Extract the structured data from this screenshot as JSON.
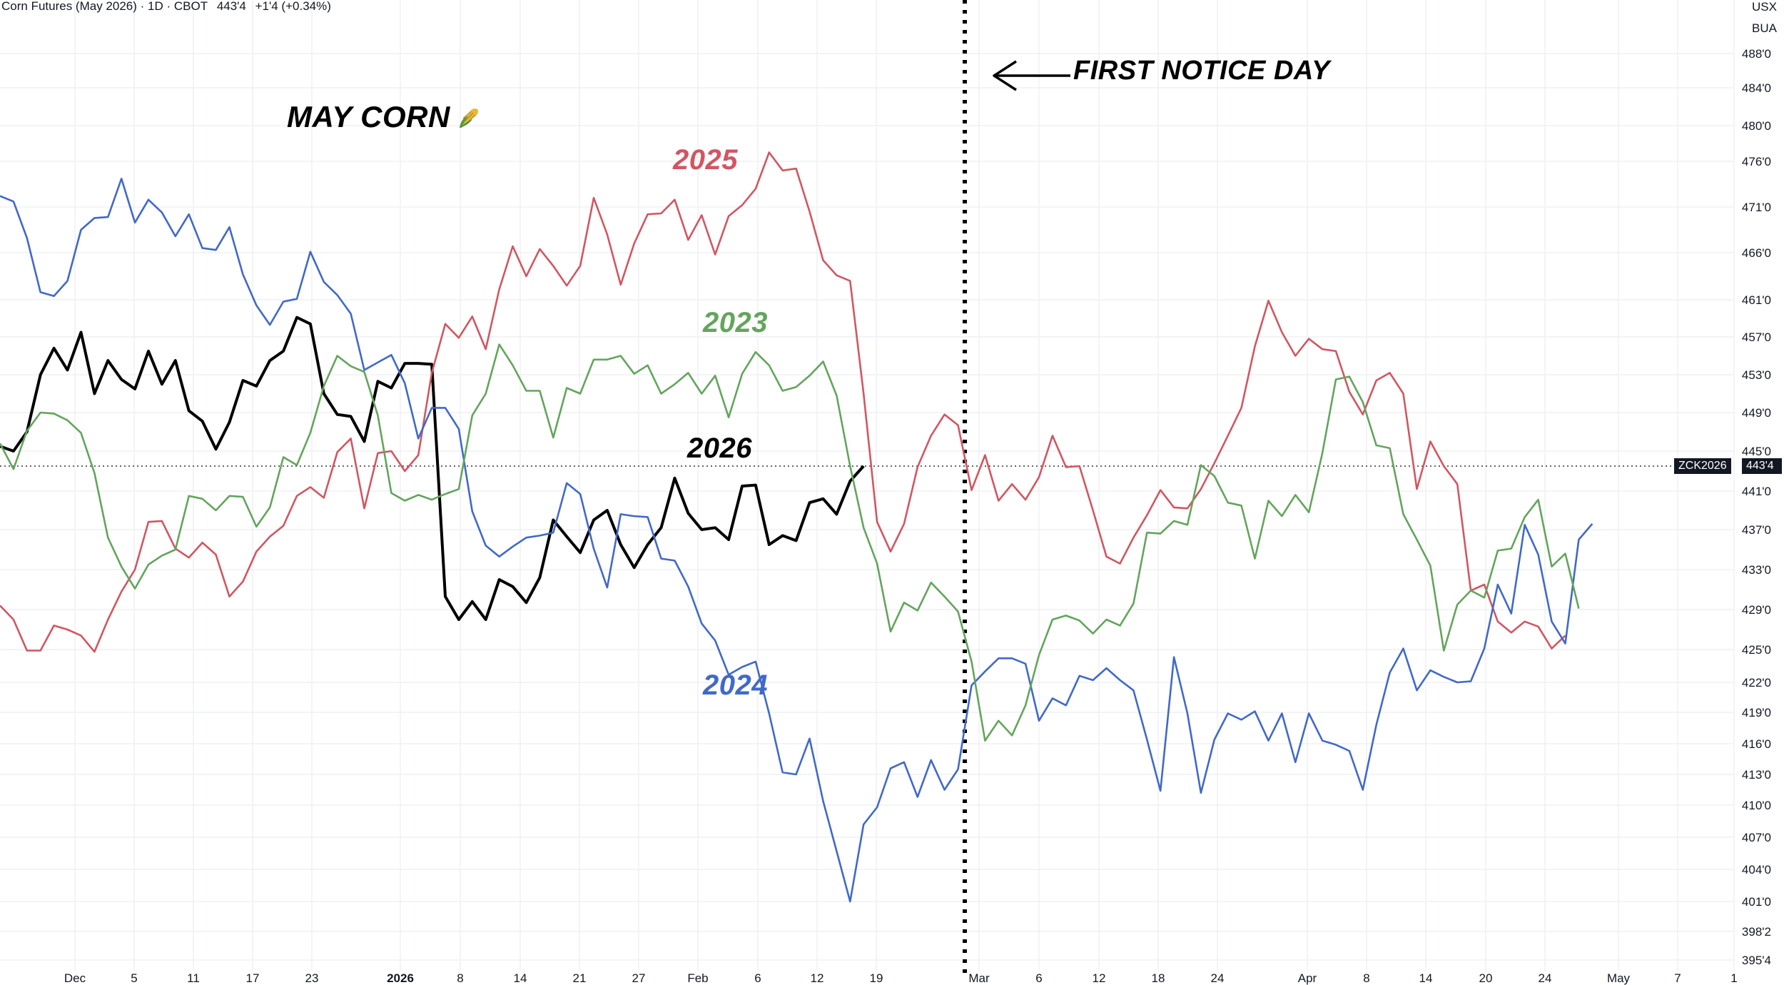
{
  "header": {
    "symbol_title": "Corn Futures (May 2026) · 1D · CBOT",
    "last_price": "443'4",
    "change": "+1'4 (+0.34%)"
  },
  "axis_units": {
    "currency": "USX",
    "unit": "BUA"
  },
  "current_price_tag": {
    "symbol": "ZCK2026",
    "price": "443'4"
  },
  "annotations": {
    "chart_title": "MAY CORN",
    "chart_title_icon": "corn-icon",
    "first_notice_day": "FIRST NOTICE DAY",
    "label_2025": "2025",
    "label_2023": "2023",
    "label_2026": "2026",
    "label_2024": "2024"
  },
  "colors": {
    "series_2026": "#000000",
    "series_2025": "#d05762",
    "series_2024": "#4169c8",
    "series_2023": "#63a55c",
    "grid": "#eef0f3",
    "text": "#131722"
  },
  "chart_data": {
    "type": "line",
    "title": "MAY CORN",
    "x_ticks": [
      {
        "label": "Dec",
        "bold": false
      },
      {
        "label": "5",
        "bold": false
      },
      {
        "label": "11",
        "bold": false
      },
      {
        "label": "17",
        "bold": false
      },
      {
        "label": "23",
        "bold": false
      },
      {
        "label": "2026",
        "bold": true
      },
      {
        "label": "8",
        "bold": false
      },
      {
        "label": "14",
        "bold": false
      },
      {
        "label": "21",
        "bold": false
      },
      {
        "label": "27",
        "bold": false
      },
      {
        "label": "Feb",
        "bold": false
      },
      {
        "label": "6",
        "bold": false
      },
      {
        "label": "12",
        "bold": false
      },
      {
        "label": "19",
        "bold": false
      },
      {
        "label": "Mar",
        "bold": false
      },
      {
        "label": "6",
        "bold": false
      },
      {
        "label": "12",
        "bold": false
      },
      {
        "label": "18",
        "bold": false
      },
      {
        "label": "24",
        "bold": false
      },
      {
        "label": "Apr",
        "bold": false
      },
      {
        "label": "8",
        "bold": false
      },
      {
        "label": "14",
        "bold": false
      },
      {
        "label": "20",
        "bold": false
      },
      {
        "label": "24",
        "bold": false
      },
      {
        "label": "May",
        "bold": false
      },
      {
        "label": "7",
        "bold": false
      },
      {
        "label": "1",
        "bold": false
      }
    ],
    "y_ticks": [
      "488'0",
      "484'0",
      "480'0",
      "476'0",
      "471'0",
      "466'0",
      "461'0",
      "457'0",
      "453'0",
      "449'0",
      "445'0",
      "441'0",
      "437'0",
      "433'0",
      "429'0",
      "425'0",
      "422'0",
      "419'0",
      "416'0",
      "413'0",
      "410'0",
      "407'0",
      "404'0",
      "401'0",
      "398'2",
      "395'4"
    ],
    "first_notice_day_index": 71.5,
    "current_price": 443.5,
    "series": [
      {
        "name": "2026",
        "values": [
          445.5,
          445,
          447,
          453,
          455.8,
          453.5,
          457.5,
          451,
          454.5,
          452.5,
          451.5,
          455.5,
          452,
          454.5,
          449.2,
          448.1,
          445.2,
          448,
          452.4,
          451.8,
          454.5,
          455.5,
          459.1,
          458.4,
          451,
          448.8,
          448.6,
          446,
          452.3,
          451.6,
          454.2,
          454.2,
          454.1,
          430.3,
          428,
          429.8,
          428,
          432,
          431.3,
          429.7,
          432.2,
          438,
          436.3,
          434.7,
          438,
          439,
          435.5,
          433.2,
          435.5,
          437.2,
          442.3,
          438.7,
          437,
          437.2,
          436,
          441.5,
          441.6,
          435.5,
          436.4,
          435.9,
          439.8,
          440.2,
          438.6,
          442,
          443.5
        ]
      },
      {
        "name": "2025",
        "values": [
          429.4,
          428,
          424.9,
          424.9,
          427.4,
          427,
          426.4,
          424.8,
          428,
          430.8,
          433,
          437.8,
          437.9,
          435.1,
          434.2,
          435.7,
          434.5,
          430.3,
          431.8,
          434.8,
          436.3,
          437.4,
          440.5,
          441.4,
          440.3,
          444.9,
          446.3,
          439.2,
          444.8,
          445,
          443,
          444.6,
          453.2,
          458.4,
          456.9,
          459.2,
          455.7,
          462.1,
          466.7,
          463.5,
          466.4,
          464.6,
          462.5,
          464.6,
          472,
          468,
          462.6,
          467,
          470.2,
          470.3,
          471.8,
          467.4,
          470.1,
          465.8,
          470,
          471.2,
          473,
          477,
          475,
          475.2,
          470.5,
          465.2,
          463.6,
          463,
          451,
          437.8,
          434.8,
          437.6,
          443.4,
          446.6,
          448.8,
          447.7,
          441.1,
          444.6,
          440,
          441.7,
          440.1,
          442.4,
          446.6,
          443.4,
          443.5,
          439,
          434.3,
          433.6,
          436.2,
          438.5,
          441.1,
          439.3,
          439.2,
          441.2,
          443.8,
          446.6,
          449.5,
          456,
          460.9,
          457.5,
          455,
          456.8,
          455.7,
          455.5,
          451.2,
          448.8,
          452.4,
          453.2,
          451,
          441.2,
          446,
          443.5,
          441.7,
          430.9,
          431.5,
          427.8,
          426.7,
          427.8,
          427.3,
          425.1,
          426.4
        ]
      },
      {
        "name": "2024",
        "values": [
          472.2,
          471.6,
          467.6,
          461.8,
          461.4,
          463,
          468.5,
          469.8,
          469.9,
          474.1,
          469.3,
          471.8,
          470.4,
          467.8,
          470.2,
          466.5,
          466.3,
          468.8,
          463.7,
          460.4,
          458.3,
          460.8,
          461.1,
          466.1,
          462.9,
          461.5,
          459.5,
          453.5,
          454.3,
          455.1,
          452.1,
          446.3,
          449.5,
          449.5,
          447.3,
          438.9,
          435.4,
          434.3,
          435.3,
          436.2,
          436.4,
          436.7,
          441.8,
          440.7,
          435.1,
          431.2,
          438.6,
          438.4,
          438.3,
          434.1,
          433.9,
          431.3,
          427.6,
          425.9,
          422.7,
          423.4,
          423.9,
          418.9,
          413.2,
          413,
          416.5,
          410.4,
          405.7,
          401,
          408.2,
          409.8,
          413.6,
          414.2,
          410.8,
          414.4,
          411.5,
          413.5,
          421.7,
          423,
          424.2,
          424.2,
          423.7,
          418.2,
          420.4,
          419.7,
          422.6,
          422.2,
          423.3,
          422.2,
          421.2,
          416.4,
          411.4,
          424.3,
          418.9,
          411.2,
          416.4,
          418.9,
          418.3,
          419.1,
          416.3,
          418.9,
          414.2,
          418.9,
          416.3,
          415.9,
          415.3,
          411.5,
          417.8,
          422.9,
          425.1,
          421.2,
          423.1,
          422.5,
          422,
          422.1,
          425.1,
          431.5,
          428.6,
          437.5,
          434.5,
          427.8,
          425.6,
          436,
          437.6
        ]
      },
      {
        "name": "2023",
        "values": [
          445.8,
          443.2,
          447.1,
          449,
          448.9,
          448.2,
          446.9,
          442.8,
          436.2,
          433.3,
          431.1,
          433.5,
          434.4,
          435,
          440.5,
          440.2,
          439,
          440.5,
          440.4,
          437.3,
          439.3,
          444.4,
          443.6,
          446.9,
          451.8,
          455,
          453.9,
          453.3,
          448.7,
          440.8,
          440,
          440.6,
          440.1,
          440.7,
          441.2,
          448.7,
          451,
          456.2,
          454,
          451.3,
          451.3,
          446.4,
          451.6,
          451,
          454.6,
          454.6,
          455,
          453.1,
          454,
          451,
          452,
          453.2,
          451,
          452.9,
          448.5,
          453.1,
          455.4,
          454,
          451.3,
          451.7,
          452.9,
          454.4,
          450.8,
          443.5,
          437.2,
          433.6,
          426.8,
          429.7,
          428.9,
          431.7,
          430.3,
          428.8,
          423.9,
          416.3,
          418.2,
          416.8,
          419.7,
          424.5,
          428,
          428.4,
          427.9,
          426.6,
          428,
          427.4,
          429.6,
          436.7,
          436.6,
          437.9,
          437.5,
          443.6,
          442.5,
          439.8,
          439.5,
          434.1,
          440,
          438.4,
          440.6,
          438.8,
          444.8,
          452.5,
          452.8,
          450.1,
          445.6,
          445.3,
          438.6,
          436,
          433.4,
          424.9,
          429.5,
          430.9,
          430.2,
          434.9,
          435.1,
          438.3,
          440.1,
          433.3,
          434.6,
          429.1
        ]
      }
    ]
  }
}
